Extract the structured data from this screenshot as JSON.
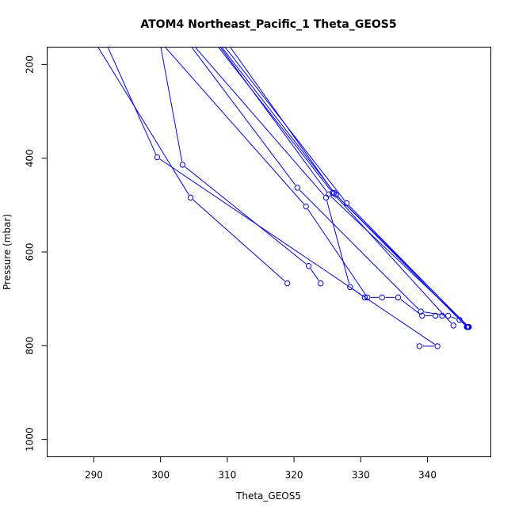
{
  "chart_data": {
    "type": "line",
    "title": "ATOM4 Northeast_Pacific_1 Theta_GEOS5",
    "xlabel": "Theta_GEOS5",
    "ylabel": "Pressure (mbar)",
    "xlim": [
      283,
      349.5
    ],
    "ylim": [
      1037,
      163
    ],
    "y_reversed": true,
    "xticks": [
      "290",
      "300",
      "310",
      "320",
      "330",
      "340"
    ],
    "yticks": [
      "200",
      "400",
      "600",
      "800",
      "1000"
    ],
    "grid": false,
    "legend": "none",
    "color": "#0000ff",
    "series": [
      {
        "points": [
          [
            290.5,
            160
          ],
          [
            304.5,
            484
          ],
          [
            319,
            667
          ]
        ]
      },
      {
        "points": [
          [
            292,
            160
          ],
          [
            299.5,
            398
          ],
          [
            341.5,
            801
          ],
          [
            338.8,
            801
          ]
        ]
      },
      {
        "points": [
          [
            300,
            160
          ],
          [
            303.3,
            414
          ],
          [
            322.2,
            630
          ],
          [
            324,
            667
          ]
        ]
      },
      {
        "points": [
          [
            300.5,
            160
          ],
          [
            321.8,
            503
          ],
          [
            331,
            697
          ],
          [
            333.2,
            697
          ],
          [
            335.6,
            697
          ],
          [
            339.2,
            736
          ],
          [
            341.2,
            736
          ],
          [
            342.2,
            736
          ]
        ]
      },
      {
        "points": [
          [
            304.5,
            160
          ],
          [
            320.5,
            463
          ],
          [
            339,
            727
          ],
          [
            343.1,
            736
          ],
          [
            344.8,
            745
          ],
          [
            346,
            760
          ]
        ]
      },
      {
        "points": [
          [
            305,
            160
          ],
          [
            324.8,
            484
          ],
          [
            328.4,
            675
          ],
          [
            330.6,
            697
          ]
        ]
      },
      {
        "points": [
          [
            308.5,
            160
          ],
          [
            325.8,
            474
          ],
          [
            343.9,
            757
          ]
        ]
      },
      {
        "points": [
          [
            309,
            160
          ],
          [
            326.3,
            478
          ],
          [
            346.2,
            760
          ]
        ]
      },
      {
        "points": [
          [
            309.5,
            160
          ],
          [
            327.9,
            496
          ],
          [
            346.1,
            760
          ]
        ]
      },
      {
        "points": [
          [
            308.8,
            160
          ],
          [
            325.2,
            477
          ],
          [
            346.2,
            760
          ]
        ]
      },
      {
        "points": [
          [
            310.3,
            160
          ],
          [
            326,
            474
          ],
          [
            345.9,
            760
          ]
        ]
      }
    ]
  }
}
